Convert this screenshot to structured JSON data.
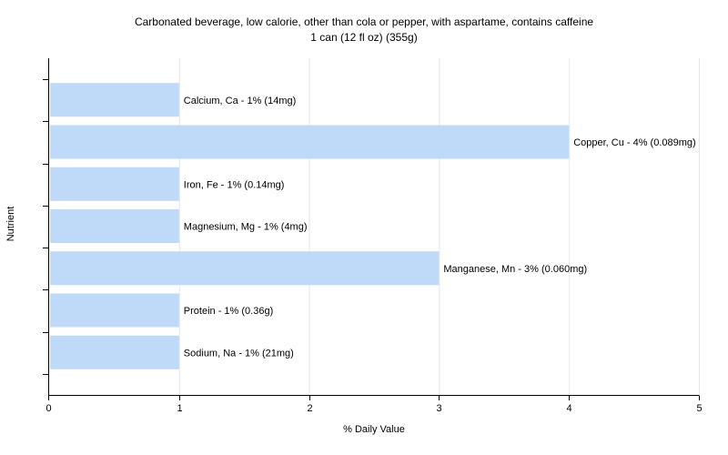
{
  "chart_data": {
    "type": "bar",
    "orientation": "horizontal",
    "title": "Carbonated beverage, low calorie, other than cola or pepper, with aspartame, contains caffeine",
    "subtitle": "1 can (12 fl oz) (355g)",
    "xlabel": "% Daily Value",
    "ylabel": "Nutrient",
    "xlim": [
      0,
      5
    ],
    "x_ticks": [
      "0",
      "1",
      "2",
      "3",
      "4",
      "5"
    ],
    "grid": true,
    "categories": [
      "Calcium, Ca",
      "Copper, Cu",
      "Iron, Fe",
      "Magnesium, Mg",
      "Manganese, Mn",
      "Protein",
      "Sodium, Na"
    ],
    "values": [
      1,
      4,
      1,
      1,
      3,
      1,
      1
    ],
    "data_labels": [
      "Calcium, Ca - 1% (14mg)",
      "Copper, Cu - 4% (0.089mg)",
      "Iron, Fe - 1% (0.14mg)",
      "Magnesium, Mg - 1% (4mg)",
      "Manganese, Mn - 3% (0.060mg)",
      "Protein - 1% (0.36g)",
      "Sodium, Na - 1% (21mg)"
    ],
    "bar_color": "#bfd9f9"
  }
}
